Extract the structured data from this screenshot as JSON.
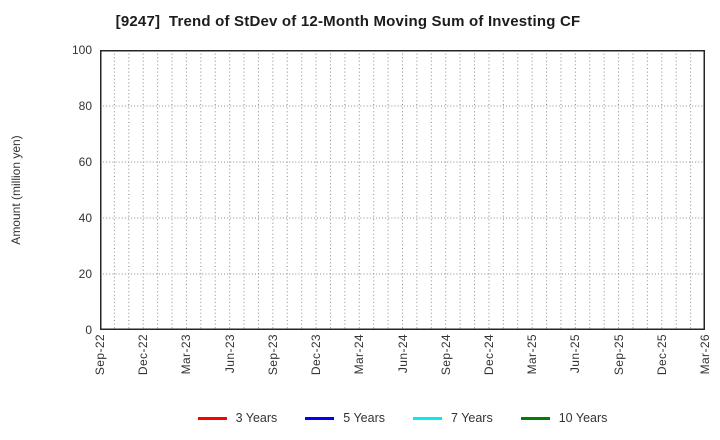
{
  "header": {
    "title": "[9247]  Trend of StDev of 12-Month Moving Sum of Investing CF"
  },
  "y_axis": {
    "label": "Amount (million yen)",
    "ticks": [
      "0",
      "20",
      "40",
      "60",
      "80",
      "100"
    ],
    "min": 0,
    "max": 100,
    "step": 20
  },
  "x_axis": {
    "tick_labels": [
      "Sep-22",
      "Dec-22",
      "Mar-23",
      "Jun-23",
      "Sep-23",
      "Dec-23",
      "Mar-24",
      "Jun-24",
      "Sep-24",
      "Dec-24",
      "Mar-25",
      "Jun-25",
      "Sep-25",
      "Dec-25",
      "Mar-26"
    ],
    "months_total": 42,
    "tick_every_months": 3
  },
  "legend": {
    "items": [
      {
        "label": "3 Years",
        "color": "#ff0000"
      },
      {
        "label": "5 Years",
        "color": "#0000ff"
      },
      {
        "label": "7 Years",
        "color": "#00eeee"
      },
      {
        "label": "10 Years",
        "color": "#008000"
      }
    ]
  },
  "grid": {
    "line_color": "#8a8a8a",
    "border_color": "#262626"
  },
  "chart_data": {
    "type": "line",
    "title": "[9247]  Trend of StDev of 12-Month Moving Sum of Investing CF",
    "xlabel": "",
    "ylabel": "Amount (million yen)",
    "ylim": [
      0,
      100
    ],
    "y_ticks": [
      0,
      20,
      40,
      60,
      80,
      100
    ],
    "x_tick_labels": [
      "Sep-22",
      "Dec-22",
      "Mar-23",
      "Jun-23",
      "Sep-23",
      "Dec-23",
      "Mar-24",
      "Jun-24",
      "Sep-24",
      "Dec-24",
      "Mar-25",
      "Jun-25",
      "Sep-25",
      "Dec-25",
      "Mar-26"
    ],
    "grid": true,
    "legend_position": "bottom",
    "series": [
      {
        "name": "3 Years",
        "color": "#ff0000",
        "values": []
      },
      {
        "name": "5 Years",
        "color": "#0000ff",
        "values": []
      },
      {
        "name": "7 Years",
        "color": "#00eeee",
        "values": []
      },
      {
        "name": "10 Years",
        "color": "#008000",
        "values": []
      }
    ],
    "empty": true
  }
}
